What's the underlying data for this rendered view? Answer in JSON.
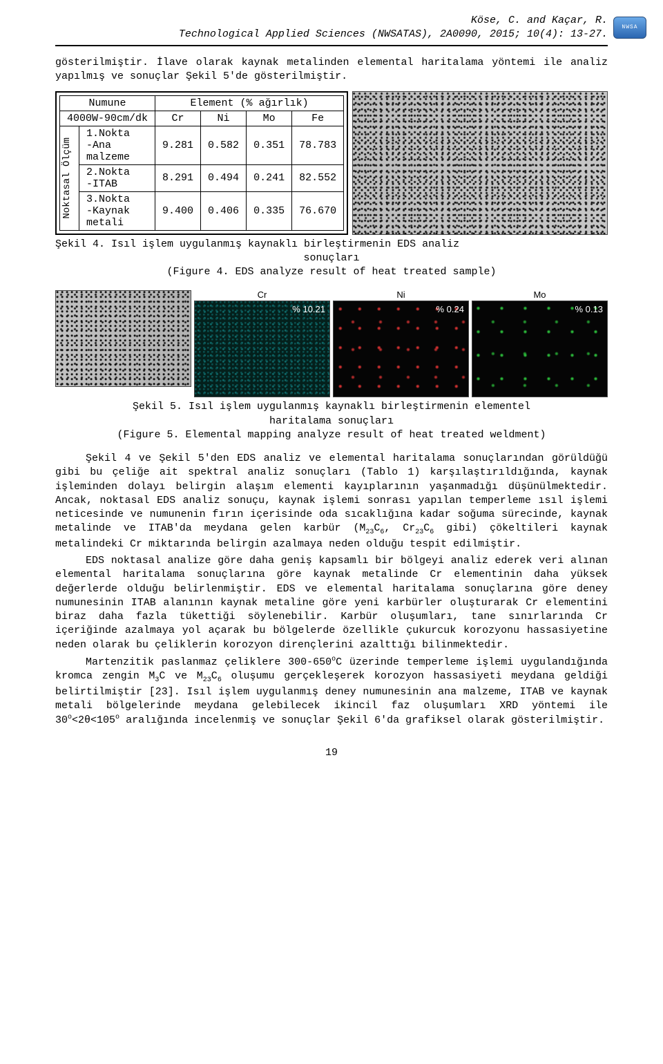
{
  "header": {
    "authors": "Köse, C. and Kaçar, R.",
    "journal_line": "Technological Applied Sciences (NWSATAS), 2A0090, 2015; 10(4): 13-27.",
    "logo_text": "NWSA"
  },
  "intro_para": "gösterilmiştir. İlave olarak kaynak metalinden elemental haritalama yöntemi ile analiz yapılmış ve sonuçlar Şekil 5'de gösterilmiştir.",
  "table": {
    "sample_header": "Numune",
    "sample_label": "4000W-90cm/dk",
    "element_row_title": "Element (% ağırlık)",
    "columns": [
      "Cr",
      "Ni",
      "Mo",
      "Fe"
    ],
    "side_label": "Noktasal\nÖlçüm",
    "rows": [
      {
        "label": "1.Nokta\n-Ana\nmalzeme",
        "Cr": "9.281",
        "Ni": "0.582",
        "Mo": "0.351",
        "Fe": "78.783"
      },
      {
        "label": "2.Nokta\n-ITAB",
        "Cr": "8.291",
        "Ni": "0.494",
        "Mo": "0.241",
        "Fe": "82.552"
      },
      {
        "label": "3.Nokta\n-Kaynak\nmetali",
        "Cr": "9.400",
        "Ni": "0.406",
        "Mo": "0.335",
        "Fe": "76.670"
      }
    ]
  },
  "fig4_caption_line1": "Şekil 4. Isıl işlem uygulanmış kaynaklı birleştirmenin EDS analiz",
  "fig4_caption_line2": "sonuçları",
  "fig4_caption_line3": "(Figure 4. EDS analyze result of heat treated sample)",
  "maps": [
    {
      "label": "",
      "pct": "",
      "css": "sem"
    },
    {
      "label": "Cr",
      "pct": "% 10.21",
      "css": "teal"
    },
    {
      "label": "Ni",
      "pct": "% 0.24",
      "css": "sparse-red"
    },
    {
      "label": "Mo",
      "pct": "% 0.13",
      "css": "sparse-green"
    }
  ],
  "fig5_caption_line1": "Şekil 5. Isıl işlem uygulanmış kaynaklı birleştirmenin elementel",
  "fig5_caption_line2": "haritalama sonuçları",
  "fig5_caption_line3": "(Figure 5. Elemental mapping analyze result of heat treated weldment)",
  "para1": "Şekil 4 ve Şekil 5'den EDS analiz ve elemental haritalama sonuçlarından görüldüğü gibi bu çeliğe ait spektral analiz sonuçları (Tablo 1) karşılaştırıldığında, kaynak işleminden dolayı belirgin alaşım elementi kayıplarının yaşanmadığı düşünülmektedir. Ancak, noktasal EDS analiz sonuçu, kaynak işlemi sonrası yapılan temperleme ısıl işlemi neticesinde ve numunenin fırın içerisinde oda sıcaklığına kadar soğuma sürecinde, kaynak metalinde ve ITAB'da meydana gelen karbür (M",
  "para1_sub1": "23",
  "para1_mid1": "C",
  "para1_sub2": "6",
  "para1_mid2": ", Cr",
  "para1_sub3": "23",
  "para1_mid3": "C",
  "para1_sub4": "6",
  "para1_end": " gibi) çökeltileri kaynak metalindeki Cr miktarında belirgin azalmaya neden olduğu tespit edilmiştir.",
  "para2": "EDS noktasal analize göre daha geniş kapsamlı bir bölgeyi analiz ederek veri alınan elemental haritalama sonuçlarına göre kaynak metalinde Cr elementinin daha yüksek değerlerde olduğu belirlenmiştir. EDS ve elemental haritalama sonuçlarına göre deney numunesinin ITAB alanının kaynak metaline göre yeni karbürler oluşturarak Cr elementini biraz daha fazla tükettiği söylenebilir. Karbür oluşumları, tane sınırlarında Cr içeriğinde azalmaya yol açarak bu bölgelerde özellikle çukurcuk korozyonu hassasiyetine neden olarak bu çeliklerin korozyon dirençlerini azalttığı bilinmektedir.",
  "para3_a": "Martenzitik paslanmaz çeliklere 300-650",
  "para3_sup1": "o",
  "para3_b": "C üzerinde temperleme işlemi uygulandığında kromca zengin M",
  "para3_sub1": "3",
  "para3_c": "C ve M",
  "para3_sub2": "23",
  "para3_d": "C",
  "para3_sub3": "6",
  "para3_e": " oluşumu gerçekleşerek korozyon hassasiyeti meydana geldiği belirtilmiştir [23]. Isıl işlem uygulanmış deney numunesinin ana malzeme, ITAB ve kaynak metali bölgelerinde meydana gelebilecek ikincil faz oluşumları XRD yöntemi ile 30",
  "para3_sup2": "o",
  "para3_f": "<2θ<105",
  "para3_sup3": "o",
  "para3_g": " aralığında incelenmiş ve sonuçlar Şekil 6'da grafiksel olarak gösterilmiştir.",
  "page_number": "19"
}
